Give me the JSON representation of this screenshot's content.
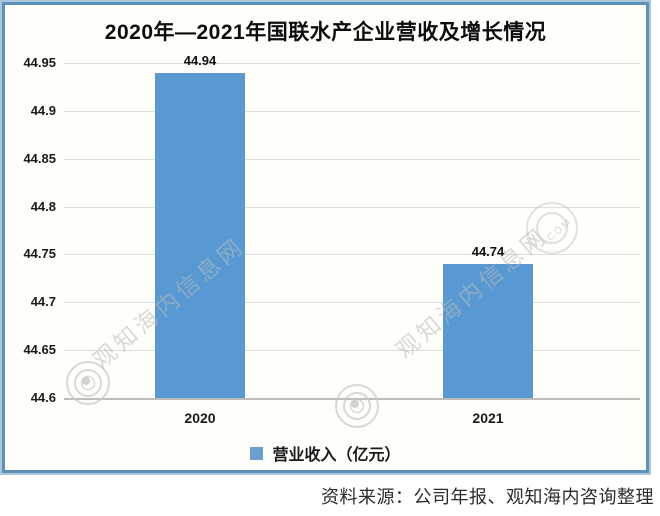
{
  "title": "2020年—2021年国联水产企业营收及增长情况",
  "chart_data": {
    "type": "bar",
    "title": "2020年—2021年国联水产企业营收及增长情况",
    "categories": [
      "2020",
      "2021"
    ],
    "values": [
      44.94,
      44.74
    ],
    "value_labels": [
      "44.94",
      "44.74"
    ],
    "series_name": "营业收入（亿元）",
    "xlabel": "",
    "ylabel": "",
    "ylim": [
      44.6,
      44.95
    ],
    "yticks": [
      44.95,
      44.9,
      44.85,
      44.8,
      44.75,
      44.7,
      44.65,
      44.6
    ],
    "ytick_labels": [
      "44.95",
      "44.9",
      "44.85",
      "44.8",
      "44.75",
      "44.7",
      "44.65",
      "44.6"
    ],
    "grid": true,
    "legend_position": "bottom",
    "bar_color": "#5899d3"
  },
  "legend": {
    "label": "营业收入（亿元）"
  },
  "source_note": "资料来源：公司年报、观知海内咨询整理",
  "watermark": {
    "text": "观知海内信息网",
    "small_text": ".COM"
  },
  "colors": {
    "bar": "#5899d3",
    "legend_marker": "#6b9fd0",
    "frame_border": "#5e90b8",
    "frame_border_outer": "#a9c6dc",
    "gridline": "#dcdcdc",
    "baseline": "#bdbdbd",
    "watermark": "#bababa"
  }
}
